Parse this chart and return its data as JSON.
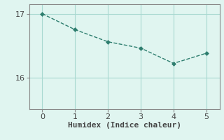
{
  "x": [
    0,
    1,
    2,
    3,
    4,
    5
  ],
  "y": [
    17.0,
    16.75,
    16.56,
    16.46,
    16.22,
    16.38
  ],
  "line_color": "#2d7d6e",
  "marker": "D",
  "marker_size": 3.0,
  "linestyle": "--",
  "linewidth": 1.0,
  "xlabel": "Humidex (Indice chaleur)",
  "xlabel_fontsize": 8,
  "bg_color": "#e0f5f0",
  "grid_color": "#a8d8d0",
  "tick_color": "#444444",
  "ylim": [
    15.5,
    17.15
  ],
  "yticks": [
    16,
    17
  ],
  "xticks": [
    0,
    1,
    2,
    3,
    4,
    5
  ],
  "axes_color": "#888888",
  "tick_fontsize": 8
}
